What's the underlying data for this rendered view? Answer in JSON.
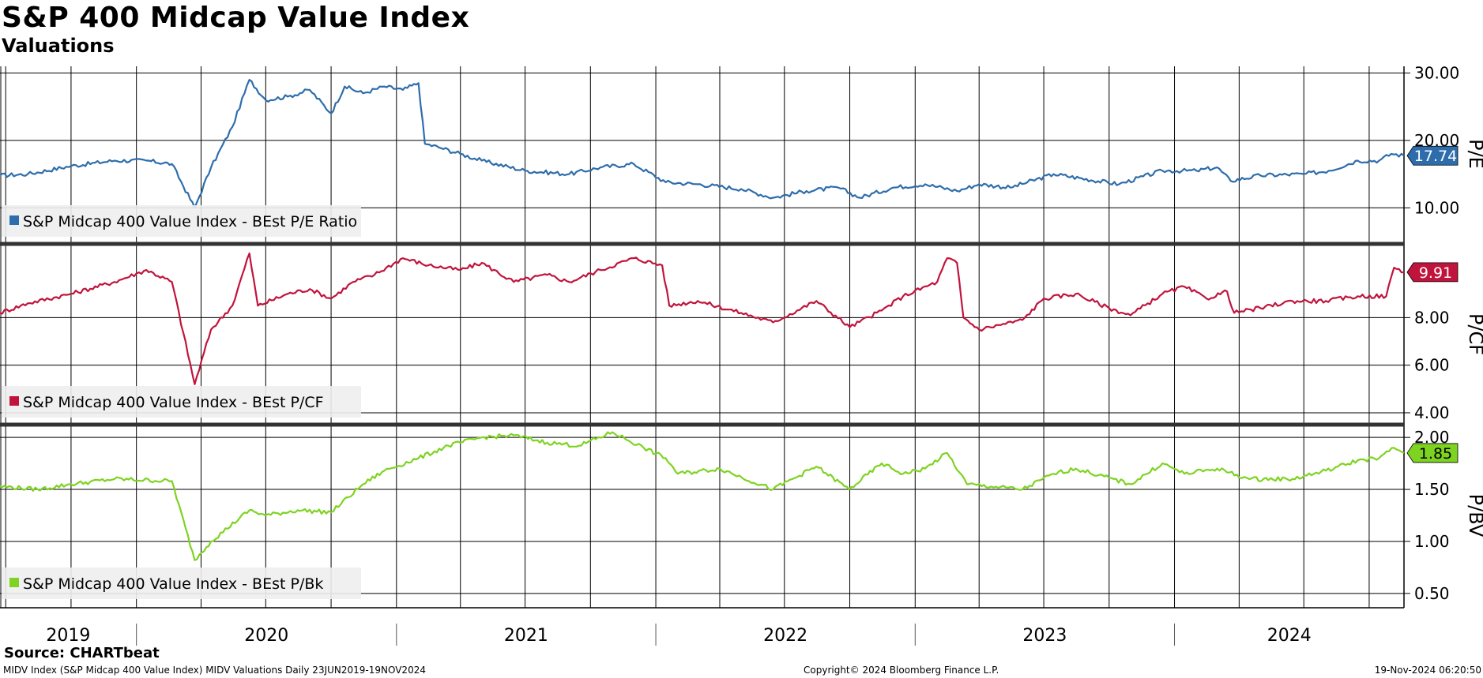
{
  "header": {
    "title": "S&P 400 Midcap Value Index",
    "subtitle": "Valuations"
  },
  "footer": {
    "source": "Source: CHARTbeat",
    "description": "MIDV Index (S&P Midcap 400 Value Index) MIDV Valuations  Daily 23JUN2019-19NOV2024",
    "copyright": "Copyright© 2024 Bloomberg Finance L.P.",
    "timestamp": "19-Nov-2024 06:20:50"
  },
  "colors": {
    "pe": "#2e6dab",
    "pcf": "#c0143c",
    "pbv": "#7ed321"
  },
  "chart_data": {
    "type": "line",
    "x_range": [
      "2019-06-23",
      "2024-11-19"
    ],
    "x_tick_labels": [
      "2019",
      "2020",
      "2021",
      "2022",
      "2023",
      "2024"
    ],
    "grid": true,
    "legend": "bottom-left",
    "panels": [
      {
        "ylabel": "P/E",
        "ylim": [
          5,
          31
        ],
        "ticks": [
          10,
          20,
          30
        ],
        "tick_labels": [
          "10.00",
          "20.00",
          "30.00"
        ],
        "last_value_label": "17.74",
        "series": [
          {
            "name": "S&P Midcap 400 Value Index - BEst P/E Ratio",
            "points": [
              [
                "2019-06-23",
                14.8
              ],
              [
                "2019-08-01",
                15.0
              ],
              [
                "2019-10-01",
                16.2
              ],
              [
                "2019-12-01",
                17.0
              ],
              [
                "2020-01-15",
                17.0
              ],
              [
                "2020-02-20",
                16.5
              ],
              [
                "2020-03-23",
                10.0
              ],
              [
                "2020-04-15",
                16.0
              ],
              [
                "2020-05-15",
                22.0
              ],
              [
                "2020-06-08",
                29.0
              ],
              [
                "2020-07-01",
                26.0
              ],
              [
                "2020-08-01",
                26.5
              ],
              [
                "2020-09-01",
                27.5
              ],
              [
                "2020-10-01",
                24.0
              ],
              [
                "2020-10-20",
                28.0
              ],
              [
                "2020-11-15",
                27.0
              ],
              [
                "2020-12-15",
                28.0
              ],
              [
                "2021-01-10",
                27.5
              ],
              [
                "2021-02-01",
                28.5
              ],
              [
                "2021-02-10",
                19.5
              ],
              [
                "2021-03-01",
                19.0
              ],
              [
                "2021-04-01",
                18.0
              ],
              [
                "2021-05-01",
                17.0
              ],
              [
                "2021-07-01",
                15.5
              ],
              [
                "2021-09-01",
                15.0
              ],
              [
                "2021-10-15",
                16.0
              ],
              [
                "2021-12-01",
                16.5
              ],
              [
                "2022-01-15",
                13.8
              ],
              [
                "2022-03-01",
                13.5
              ],
              [
                "2022-05-01",
                12.8
              ],
              [
                "2022-06-15",
                11.5
              ],
              [
                "2022-08-01",
                12.5
              ],
              [
                "2022-09-15",
                13.0
              ],
              [
                "2022-10-15",
                11.5
              ],
              [
                "2022-12-01",
                13.0
              ],
              [
                "2023-01-15",
                13.5
              ],
              [
                "2023-03-01",
                12.5
              ],
              [
                "2023-04-01",
                13.5
              ],
              [
                "2023-05-15",
                13.0
              ],
              [
                "2023-07-15",
                15.0
              ],
              [
                "2023-10-15",
                13.5
              ],
              [
                "2023-12-15",
                15.5
              ],
              [
                "2024-02-01",
                15.5
              ],
              [
                "2024-03-01",
                16.0
              ],
              [
                "2024-03-20",
                14.0
              ],
              [
                "2024-05-01",
                14.8
              ],
              [
                "2024-07-01",
                15.0
              ],
              [
                "2024-08-05",
                15.5
              ],
              [
                "2024-09-15",
                17.0
              ],
              [
                "2024-10-15",
                17.0
              ],
              [
                "2024-11-01",
                18.0
              ],
              [
                "2024-11-19",
                17.74
              ]
            ]
          }
        ]
      },
      {
        "ylabel": "P/CF",
        "ylim": [
          3.6,
          11.0
        ],
        "ticks": [
          4,
          6,
          8
        ],
        "tick_labels": [
          "4.00",
          "6.00",
          "8.00"
        ],
        "last_value_label": "9.91",
        "series": [
          {
            "name": "S&P Midcap 400 Value Index - BEst P/CF",
            "points": [
              [
                "2019-06-23",
                8.2
              ],
              [
                "2019-08-01",
                8.6
              ],
              [
                "2019-10-01",
                9.0
              ],
              [
                "2019-12-01",
                9.5
              ],
              [
                "2020-01-15",
                10.0
              ],
              [
                "2020-02-20",
                9.5
              ],
              [
                "2020-03-23",
                5.2
              ],
              [
                "2020-04-15",
                7.5
              ],
              [
                "2020-05-15",
                8.5
              ],
              [
                "2020-06-08",
                10.7
              ],
              [
                "2020-06-20",
                8.5
              ],
              [
                "2020-08-01",
                9.0
              ],
              [
                "2020-09-01",
                9.2
              ],
              [
                "2020-10-01",
                8.8
              ],
              [
                "2020-11-01",
                9.5
              ],
              [
                "2020-12-01",
                9.8
              ],
              [
                "2021-01-10",
                10.5
              ],
              [
                "2021-02-15",
                10.2
              ],
              [
                "2021-04-01",
                10.0
              ],
              [
                "2021-05-01",
                10.3
              ],
              [
                "2021-06-15",
                9.5
              ],
              [
                "2021-08-01",
                9.8
              ],
              [
                "2021-09-01",
                9.5
              ],
              [
                "2021-10-15",
                10.0
              ],
              [
                "2021-12-01",
                10.5
              ],
              [
                "2022-01-10",
                10.2
              ],
              [
                "2022-01-20",
                8.5
              ],
              [
                "2022-03-01",
                8.7
              ],
              [
                "2022-05-01",
                8.2
              ],
              [
                "2022-06-15",
                7.8
              ],
              [
                "2022-08-15",
                8.7
              ],
              [
                "2022-10-01",
                7.6
              ],
              [
                "2022-11-15",
                8.3
              ],
              [
                "2022-12-15",
                8.9
              ],
              [
                "2023-02-01",
                9.5
              ],
              [
                "2023-02-15",
                10.5
              ],
              [
                "2023-03-01",
                10.3
              ],
              [
                "2023-03-10",
                8.0
              ],
              [
                "2023-04-01",
                7.5
              ],
              [
                "2023-06-01",
                7.9
              ],
              [
                "2023-07-01",
                8.8
              ],
              [
                "2023-08-15",
                9.0
              ],
              [
                "2023-10-01",
                8.4
              ],
              [
                "2023-10-31",
                8.1
              ],
              [
                "2023-12-15",
                9.0
              ],
              [
                "2024-01-15",
                9.3
              ],
              [
                "2024-02-15",
                8.8
              ],
              [
                "2024-03-15",
                9.1
              ],
              [
                "2024-03-25",
                8.2
              ],
              [
                "2024-05-01",
                8.4
              ],
              [
                "2024-06-15",
                8.7
              ],
              [
                "2024-08-01",
                8.7
              ],
              [
                "2024-09-15",
                8.9
              ],
              [
                "2024-10-25",
                8.9
              ],
              [
                "2024-11-05",
                10.1
              ],
              [
                "2024-11-19",
                9.91
              ]
            ]
          }
        ]
      },
      {
        "ylabel": "P/BV",
        "ylim": [
          0.4,
          2.1
        ],
        "ticks": [
          0.5,
          1.0,
          1.5,
          2.0
        ],
        "tick_labels": [
          "0.50",
          "1.00",
          "1.50",
          "2.00"
        ],
        "last_value_label": "1.85",
        "series": [
          {
            "name": "S&P Midcap 400 Value Index - BEst P/Bk",
            "points": [
              [
                "2019-06-23",
                1.53
              ],
              [
                "2019-08-15",
                1.5
              ],
              [
                "2019-10-01",
                1.55
              ],
              [
                "2019-12-01",
                1.6
              ],
              [
                "2020-02-20",
                1.58
              ],
              [
                "2020-03-23",
                0.82
              ],
              [
                "2020-04-15",
                1.0
              ],
              [
                "2020-06-08",
                1.3
              ],
              [
                "2020-07-01",
                1.25
              ],
              [
                "2020-08-15",
                1.3
              ],
              [
                "2020-10-01",
                1.28
              ],
              [
                "2020-11-15",
                1.55
              ],
              [
                "2020-12-15",
                1.68
              ],
              [
                "2021-02-01",
                1.8
              ],
              [
                "2021-03-15",
                1.92
              ],
              [
                "2021-05-01",
                2.0
              ],
              [
                "2021-06-15",
                2.02
              ],
              [
                "2021-08-01",
                1.95
              ],
              [
                "2021-09-15",
                1.92
              ],
              [
                "2021-11-01",
                2.05
              ],
              [
                "2021-12-15",
                1.9
              ],
              [
                "2022-01-15",
                1.8
              ],
              [
                "2022-02-01",
                1.65
              ],
              [
                "2022-04-01",
                1.7
              ],
              [
                "2022-06-15",
                1.5
              ],
              [
                "2022-08-15",
                1.72
              ],
              [
                "2022-09-30",
                1.5
              ],
              [
                "2022-11-15",
                1.75
              ],
              [
                "2022-12-15",
                1.65
              ],
              [
                "2023-01-15",
                1.7
              ],
              [
                "2023-02-15",
                1.85
              ],
              [
                "2023-03-15",
                1.55
              ],
              [
                "2023-06-01",
                1.5
              ],
              [
                "2023-07-15",
                1.65
              ],
              [
                "2023-08-15",
                1.7
              ],
              [
                "2023-10-31",
                1.55
              ],
              [
                "2023-12-15",
                1.75
              ],
              [
                "2024-01-15",
                1.65
              ],
              [
                "2024-03-01",
                1.7
              ],
              [
                "2024-04-15",
                1.6
              ],
              [
                "2024-06-15",
                1.6
              ],
              [
                "2024-08-01",
                1.68
              ],
              [
                "2024-09-15",
                1.78
              ],
              [
                "2024-10-15",
                1.8
              ],
              [
                "2024-11-05",
                1.9
              ],
              [
                "2024-11-19",
                1.85
              ]
            ]
          }
        ]
      }
    ]
  }
}
